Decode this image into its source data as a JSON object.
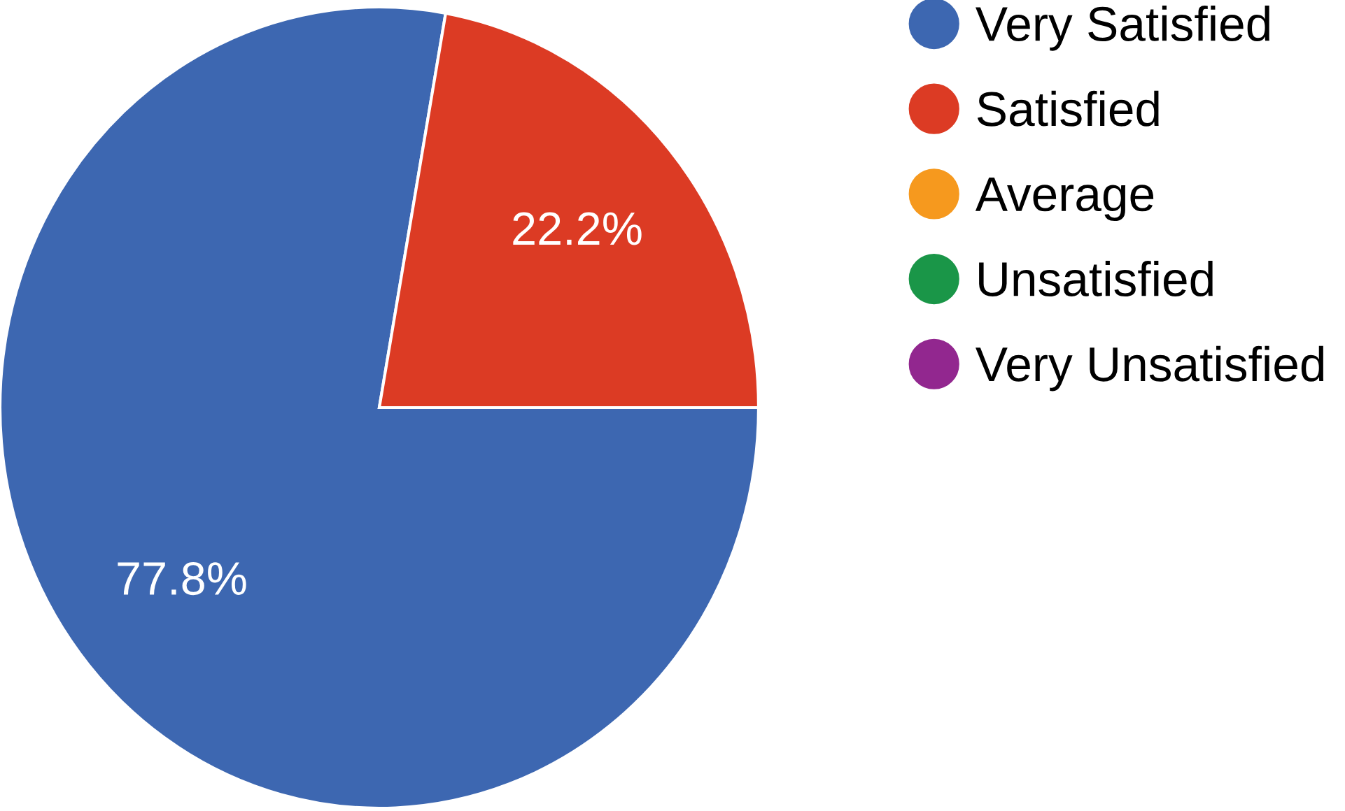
{
  "chart_data": {
    "type": "pie",
    "categories": [
      "Very Satisfied",
      "Satisfied",
      "Average",
      "Unsatisfied",
      "Very Unsatisfied"
    ],
    "values": [
      77.8,
      22.2,
      0,
      0,
      0
    ],
    "colors": [
      "#3d67b1",
      "#dc3b24",
      "#f6991e",
      "#1a9648",
      "#92278f"
    ],
    "value_labels": [
      "77.8%",
      "22.2%",
      null,
      null,
      null
    ],
    "legend": "top right"
  }
}
